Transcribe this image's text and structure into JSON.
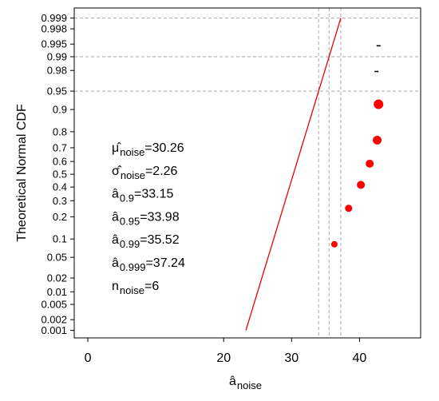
{
  "chart_data": {
    "type": "scatter",
    "ylabel": "Theoretical Normal CDF",
    "xlabel": {
      "symbol": "â",
      "subscript": "noise"
    },
    "x_scale": "linear",
    "y_scale": "probit",
    "xlim": [
      -2,
      49
    ],
    "ylim": [
      0.0006,
      0.9995
    ],
    "x_ticks": [
      0,
      20,
      30,
      40
    ],
    "x_tick_labels": [
      "0",
      "20",
      "30",
      "40"
    ],
    "y_ticks": [
      0.001,
      0.002,
      0.005,
      0.01,
      0.02,
      0.05,
      0.1,
      0.2,
      0.3,
      0.4,
      0.5,
      0.6,
      0.7,
      0.8,
      0.9,
      0.95,
      0.98,
      0.99,
      0.995,
      0.998,
      0.999
    ],
    "y_tick_labels": [
      "0.001",
      "0.002",
      "0.005",
      "0.01",
      "0.02",
      "0.05",
      "0.1",
      "0.2",
      "0.3",
      "0.4",
      "0.5",
      "0.6",
      "0.7",
      "0.8",
      "0.9",
      "0.95",
      "0.98",
      "0.99",
      "0.995",
      "0.998",
      "0.999"
    ],
    "points": [
      {
        "x": 36.3,
        "y": 0.083,
        "size": 4
      },
      {
        "x": 38.4,
        "y": 0.25,
        "size": 4.5
      },
      {
        "x": 40.2,
        "y": 0.417,
        "size": 5
      },
      {
        "x": 41.5,
        "y": 0.583,
        "size": 5
      },
      {
        "x": 42.6,
        "y": 0.75,
        "size": 5.5
      },
      {
        "x": 42.8,
        "y": 0.917,
        "size": 6
      }
    ],
    "fit_line": {
      "mean": 30.26,
      "sd": 2.26,
      "y_from": 0.001,
      "y_to": 0.999
    },
    "reference_levels": [
      0.95,
      0.99,
      0.999
    ],
    "small_marks": [
      {
        "x": 42.8,
        "y": 0.9945
      },
      {
        "x": 42.5,
        "y": 0.979
      }
    ],
    "colors": {
      "points": "#ff0000",
      "fit_line": "#ee0000",
      "reference_lines": "#aaaaaa",
      "axes": "#000000"
    },
    "grid": false,
    "legend": "none",
    "annotations": [
      {
        "symbol": "μ̂",
        "subscript": "noise",
        "value": "=30.26"
      },
      {
        "symbol": "σ̂",
        "subscript": "noise",
        "value": "=2.26"
      },
      {
        "symbol": "â",
        "subscript": "0.9",
        "value": "=33.15"
      },
      {
        "symbol": "â",
        "subscript": "0.95",
        "value": "=33.98"
      },
      {
        "symbol": "â",
        "subscript": "0.99",
        "value": "=35.52"
      },
      {
        "symbol": "â",
        "subscript": "0.999",
        "value": "=37.24"
      },
      {
        "symbol": "n",
        "subscript": "noise",
        "value": "=6"
      }
    ]
  }
}
